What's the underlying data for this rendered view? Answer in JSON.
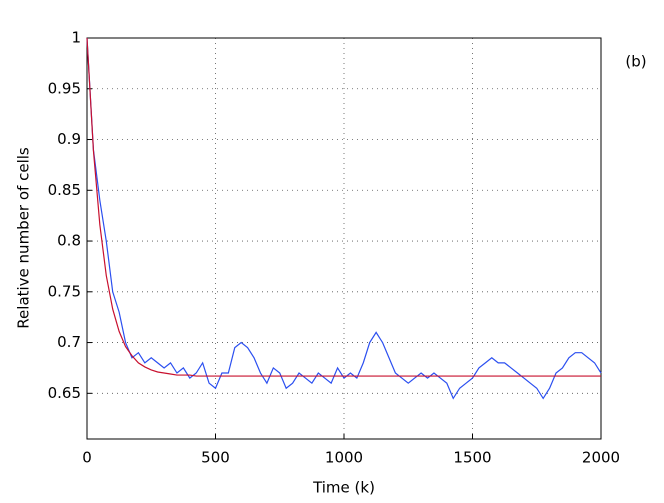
{
  "chart_data": {
    "type": "line",
    "xlabel": "Time (k)",
    "ylabel": "Relative number of cells",
    "annotation": "(b)",
    "x": [
      0,
      25,
      50,
      75,
      100,
      125,
      150,
      175,
      200,
      225,
      250,
      275,
      300,
      325,
      350,
      375,
      400,
      425,
      450,
      475,
      500,
      525,
      550,
      575,
      600,
      625,
      650,
      675,
      700,
      725,
      750,
      775,
      800,
      825,
      850,
      875,
      900,
      925,
      950,
      975,
      1000,
      1025,
      1050,
      1075,
      1100,
      1125,
      1150,
      1175,
      1200,
      1225,
      1250,
      1275,
      1300,
      1325,
      1350,
      1375,
      1400,
      1425,
      1450,
      1475,
      1500,
      1525,
      1550,
      1575,
      1600,
      1625,
      1650,
      1675,
      1700,
      1725,
      1750,
      1775,
      1800,
      1825,
      1850,
      1875,
      1900,
      1925,
      1950,
      1975,
      2000
    ],
    "series": [
      {
        "color": "#2b4ff0",
        "values": [
          1.0,
          0.89,
          0.84,
          0.8,
          0.75,
          0.73,
          0.7,
          0.685,
          0.69,
          0.68,
          0.685,
          0.68,
          0.675,
          0.68,
          0.67,
          0.675,
          0.665,
          0.67,
          0.68,
          0.66,
          0.655,
          0.67,
          0.67,
          0.695,
          0.7,
          0.695,
          0.685,
          0.67,
          0.66,
          0.675,
          0.67,
          0.655,
          0.66,
          0.67,
          0.665,
          0.66,
          0.67,
          0.665,
          0.66,
          0.675,
          0.665,
          0.67,
          0.665,
          0.68,
          0.7,
          0.71,
          0.7,
          0.685,
          0.67,
          0.665,
          0.66,
          0.665,
          0.67,
          0.665,
          0.67,
          0.665,
          0.66,
          0.645,
          0.655,
          0.66,
          0.665,
          0.675,
          0.68,
          0.685,
          0.68,
          0.68,
          0.675,
          0.67,
          0.665,
          0.66,
          0.655,
          0.645,
          0.655,
          0.67,
          0.675,
          0.685,
          0.69,
          0.69,
          0.685,
          0.68,
          0.67
        ]
      },
      {
        "color": "#c8102e",
        "values": [
          1.0,
          0.889,
          0.816,
          0.766,
          0.733,
          0.711,
          0.696,
          0.687,
          0.68,
          0.676,
          0.673,
          0.671,
          0.67,
          0.669,
          0.668,
          0.668,
          0.668,
          0.667,
          0.667,
          0.667,
          0.667,
          0.667,
          0.667,
          0.667,
          0.667,
          0.667,
          0.667,
          0.667,
          0.667,
          0.667,
          0.667,
          0.667,
          0.667,
          0.667,
          0.667,
          0.667,
          0.667,
          0.667,
          0.667,
          0.667,
          0.667,
          0.667,
          0.667,
          0.667,
          0.667,
          0.667,
          0.667,
          0.667,
          0.667,
          0.667,
          0.667,
          0.667,
          0.667,
          0.667,
          0.667,
          0.667,
          0.667,
          0.667,
          0.667,
          0.667,
          0.667,
          0.667,
          0.667,
          0.667,
          0.667,
          0.667,
          0.667,
          0.667,
          0.667,
          0.667,
          0.667,
          0.667,
          0.667,
          0.667,
          0.667,
          0.667,
          0.667,
          0.667,
          0.667,
          0.667,
          0.667
        ]
      }
    ],
    "xlim": [
      0,
      2000
    ],
    "xticks": [
      0,
      500,
      1000,
      1500,
      2000
    ],
    "ylim": [
      0.605,
      1
    ],
    "yticks": [
      0.65,
      0.7,
      0.75,
      0.8,
      0.85,
      0.9,
      0.95,
      1
    ],
    "grid": true
  }
}
